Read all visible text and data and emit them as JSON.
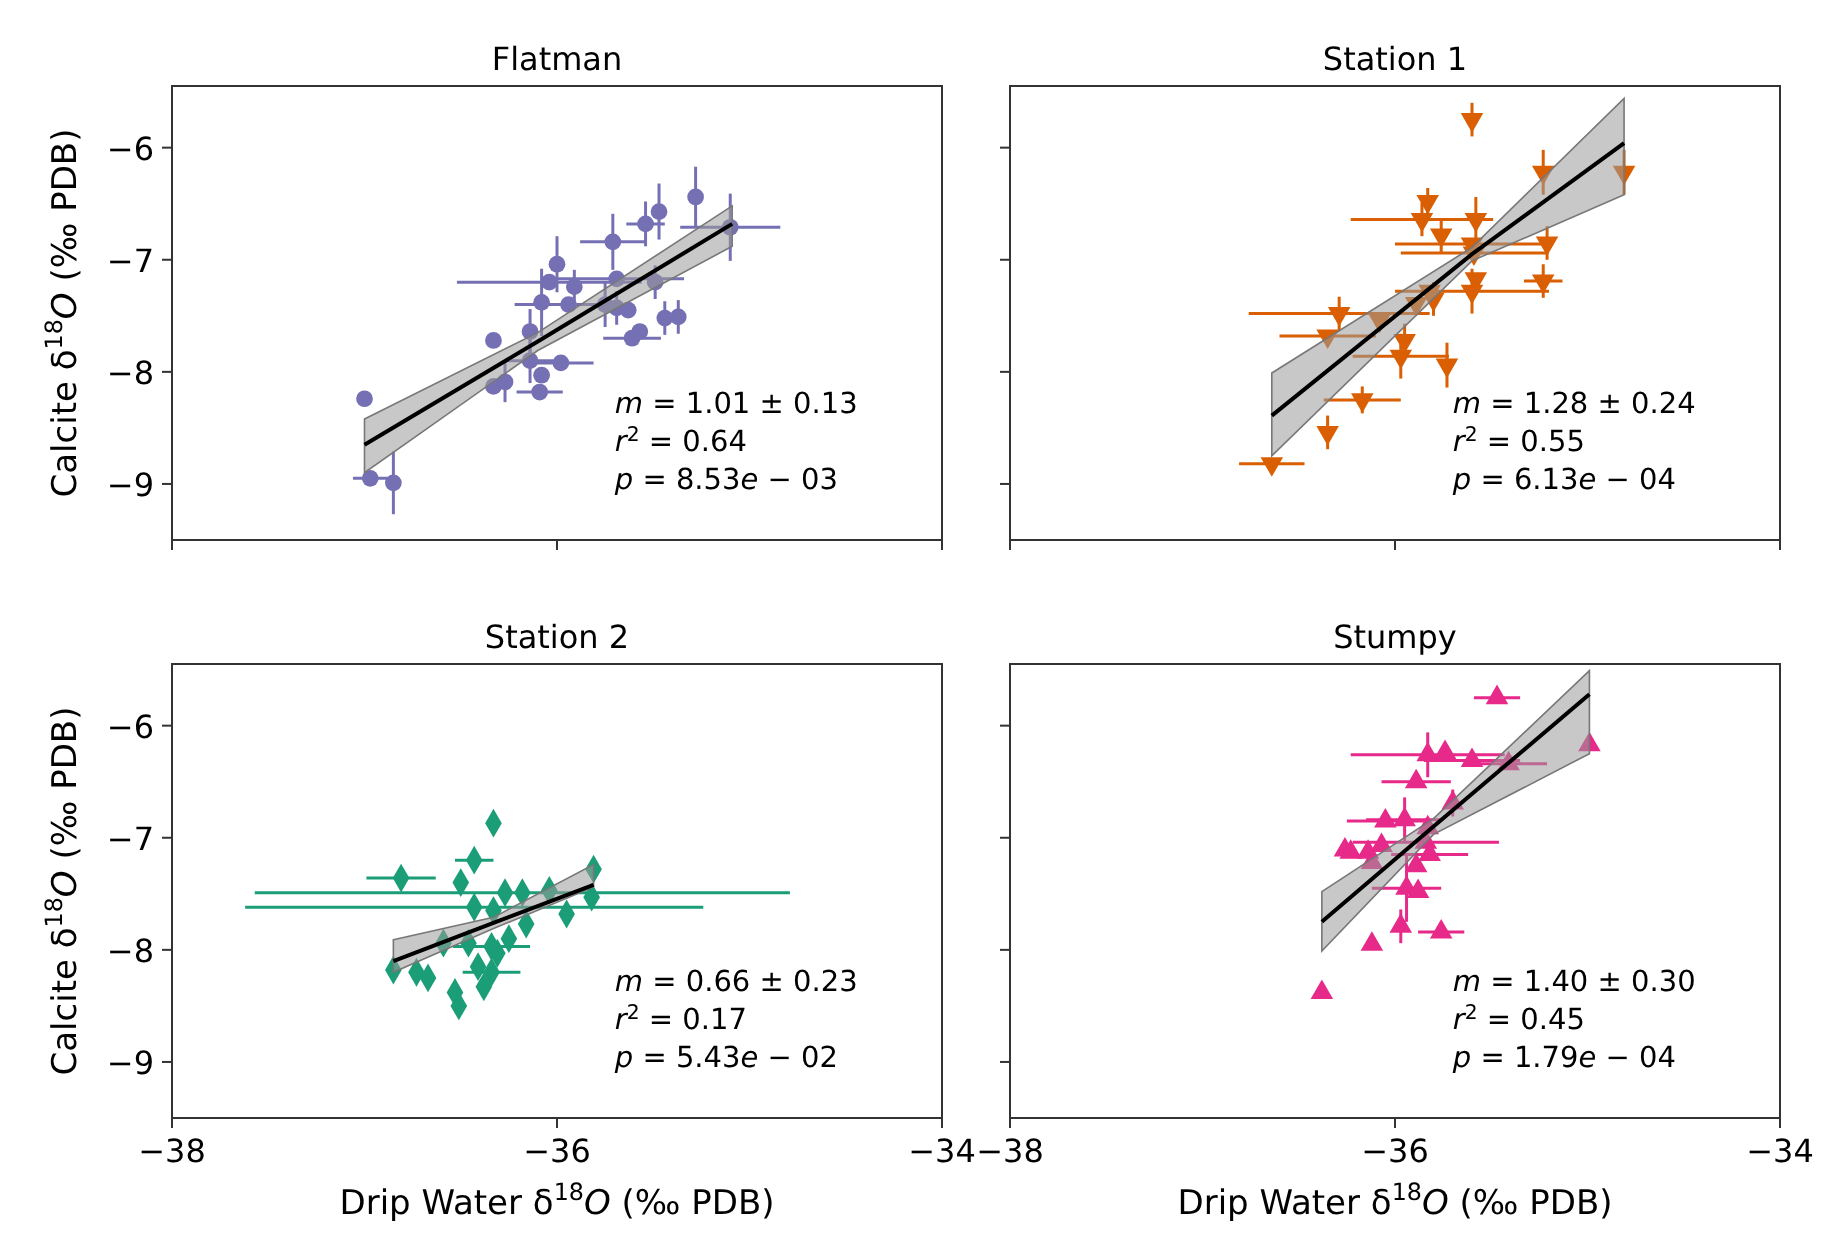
{
  "chart_data": [
    {
      "type": "scatter",
      "title": "Flatman",
      "ylabel": "Calcite δ$^{18}$O (‰ PDB)",
      "xlim": [
        -38,
        -34
      ],
      "xticks": [
        -38,
        -36,
        -34
      ],
      "ylim": [
        -9.5,
        -5.45
      ],
      "yticks": [
        -9,
        -8,
        -7,
        -6
      ],
      "tick_labels": "y",
      "annotations": [
        "m = 1.01 ± 0.13",
        "r$^{2}$ = 0.64",
        "p = 8.53e − 03"
      ],
      "series": [
        {
          "color": "#7570b3",
          "marker": "circle",
          "x": [
            -37.0,
            -36.97,
            -36.85,
            -36.33,
            -36.33,
            -36.27,
            -36.14,
            -36.14,
            -36.09,
            -36.08,
            -35.98,
            -36.08,
            -36.04,
            -36.0,
            -35.94,
            -35.91,
            -35.75,
            -35.71,
            -35.69,
            -35.69,
            -35.63,
            -35.61,
            -35.57,
            -35.54,
            -35.49,
            -35.47,
            -35.44,
            -35.37,
            -35.28,
            -35.1
          ],
          "values": [
            -8.24,
            -8.95,
            -8.99,
            -7.72,
            -8.13,
            -8.09,
            -7.64,
            -7.9,
            -8.18,
            -8.03,
            -7.92,
            -7.38,
            -7.2,
            -7.04,
            -7.4,
            -7.24,
            -7.4,
            -6.84,
            -7.17,
            -7.43,
            -7.45,
            -7.7,
            -7.64,
            -6.68,
            -7.2,
            -6.57,
            -7.52,
            -7.51,
            -6.44,
            -6.71
          ],
          "xerrors": [
            null,
            0.09,
            null,
            null,
            null,
            null,
            null,
            0.12,
            0.12,
            null,
            0.17,
            null,
            0.48,
            null,
            0.28,
            null,
            null,
            0.17,
            0.35,
            null,
            null,
            0.15,
            null,
            0.1,
            null,
            null,
            null,
            null,
            null,
            0.26
          ],
          "errors": [
            null,
            null,
            0.28,
            null,
            null,
            0.18,
            0.2,
            0.2,
            null,
            null,
            null,
            0.3,
            null,
            0.25,
            null,
            0.15,
            0.2,
            0.25,
            null,
            0.15,
            null,
            null,
            null,
            0.2,
            0.15,
            0.25,
            0.15,
            0.15,
            0.27,
            0.3
          ]
        },
        {
          "type": "line",
          "color": "#000000",
          "x": [
            -37.0,
            -36.1,
            -35.09
          ],
          "values": [
            -8.65,
            -7.73,
            -6.68
          ],
          "lower": [
            -8.9,
            -7.81,
            -6.88
          ],
          "upper": [
            -8.42,
            -7.65,
            -6.52
          ]
        }
      ]
    },
    {
      "type": "scatter",
      "title": "Station 1",
      "xlim": [
        -38,
        -34
      ],
      "xticks": [
        -38,
        -36,
        -34
      ],
      "ylim": [
        -9.5,
        -5.45
      ],
      "yticks": [
        -9,
        -8,
        -7,
        -6
      ],
      "tick_labels": false,
      "annotations": [
        "m = 1.28 ± 0.24",
        "r$^{2}$ = 0.55",
        "p = 6.13e − 04"
      ],
      "series": [
        {
          "color": "#d95f02",
          "marker": "triangle-down",
          "x": [
            -35.6,
            -35.23,
            -34.81,
            -35.83,
            -35.86,
            -35.58,
            -35.76,
            -35.6,
            -35.21,
            -35.59,
            -35.23,
            -35.58,
            -35.6,
            -35.82,
            -35.8,
            -35.89,
            -36.08,
            -36.29,
            -36.35,
            -35.95,
            -35.97,
            -35.73,
            -36.17,
            -36.35,
            -36.64
          ],
          "values": [
            -5.75,
            -6.22,
            -6.22,
            -6.48,
            -6.64,
            -6.64,
            -6.78,
            -6.86,
            -6.85,
            -6.94,
            -7.19,
            -7.17,
            -7.28,
            -7.28,
            -7.35,
            -7.39,
            -7.54,
            -7.48,
            -7.68,
            -7.72,
            -7.86,
            -7.94,
            -8.25,
            -8.54,
            -8.82
          ],
          "xerrors": [
            null,
            null,
            null,
            null,
            0.37,
            null,
            null,
            0.4,
            null,
            0.38,
            0.1,
            null,
            0.4,
            null,
            null,
            null,
            null,
            0.47,
            0.25,
            null,
            0.25,
            null,
            0.2,
            null,
            0.17
          ],
          "errors": [
            0.15,
            0.2,
            0.2,
            0.12,
            0.15,
            0.2,
            0.15,
            null,
            0.15,
            null,
            0.15,
            null,
            0.2,
            null,
            0.15,
            null,
            null,
            0.15,
            null,
            0.15,
            0.2,
            0.2,
            0.12,
            0.15,
            null
          ]
        },
        {
          "type": "line",
          "color": "#000000",
          "x": [
            -36.64,
            -35.6,
            -34.81
          ],
          "values": [
            -8.39,
            -6.95,
            -5.96
          ],
          "lower": [
            -8.75,
            -7.01,
            -6.42
          ],
          "upper": [
            -8.01,
            -6.89,
            -5.56
          ]
        }
      ]
    },
    {
      "type": "scatter",
      "title": "Station 2",
      "xlabel": "Drip Water δ$^{18}$O (‰ PDB)",
      "ylabel": "Calcite δ$^{18}$O (‰ PDB)",
      "xlim": [
        -38,
        -34
      ],
      "xticks": [
        -38,
        -36,
        -34
      ],
      "ylim": [
        -9.5,
        -5.45
      ],
      "yticks": [
        -9,
        -8,
        -7,
        -6
      ],
      "annotations": [
        "m = 0.66 ± 0.23",
        "r$^{2}$ = 0.17",
        "p = 5.43e − 02"
      ],
      "series": [
        {
          "color": "#1b9e77",
          "marker": "diamond",
          "x": [
            -36.33,
            -36.43,
            -36.81,
            -36.5,
            -35.81,
            -35.82,
            -36.18,
            -36.43,
            -36.27,
            -36.04,
            -35.95,
            -36.33,
            -36.16,
            -36.25,
            -36.34,
            -36.46,
            -36.59,
            -36.31,
            -36.85,
            -36.73,
            -36.67,
            -36.41,
            -36.34,
            -36.38,
            -36.53,
            -36.51
          ],
          "values": [
            -6.87,
            -7.2,
            -7.36,
            -7.4,
            -7.28,
            -7.53,
            -7.49,
            -7.62,
            -7.49,
            -7.47,
            -7.68,
            -7.65,
            -7.77,
            -7.9,
            -7.97,
            -7.94,
            -7.94,
            -8.03,
            -8.18,
            -8.2,
            -8.25,
            -8.15,
            -8.2,
            -8.33,
            -8.38,
            -8.5
          ],
          "xerrors": [
            null,
            0.1,
            0.18,
            null,
            null,
            null,
            1.39,
            1.19,
            null,
            null,
            null,
            null,
            null,
            null,
            0.2,
            null,
            null,
            null,
            null,
            null,
            null,
            null,
            0.15,
            null,
            null,
            null
          ]
        },
        {
          "type": "line",
          "color": "#000000",
          "x": [
            -36.85,
            -36.33,
            -35.81
          ],
          "values": [
            -8.1,
            -7.76,
            -7.42
          ],
          "lower": [
            -8.2,
            -7.81,
            -7.44
          ],
          "upper": [
            -7.91,
            -7.71,
            -7.24
          ]
        }
      ]
    },
    {
      "type": "scatter",
      "title": "Stumpy",
      "xlabel": "Drip Water δ$^{18}$O (‰ PDB)",
      "xlim": [
        -38,
        -34
      ],
      "xticks": [
        -38,
        -36,
        -34
      ],
      "ylim": [
        -9.5,
        -5.45
      ],
      "yticks": [
        -9,
        -8,
        -7,
        -6
      ],
      "tick_labels": "x",
      "annotations": [
        "m = 1.40 ± 0.30",
        "r$^{2}$ = 0.45",
        "p = 1.79e − 04"
      ],
      "series": [
        {
          "color": "#e7298a",
          "marker": "triangle",
          "x": [
            -35.47,
            -34.99,
            -35.83,
            -35.74,
            -35.6,
            -35.41,
            -35.89,
            -35.7,
            -35.95,
            -36.05,
            -35.83,
            -35.84,
            -36.26,
            -36.23,
            -36.14,
            -36.07,
            -36.12,
            -35.82,
            -35.89,
            -35.94,
            -35.88,
            -35.97,
            -35.76,
            -36.12,
            -36.38
          ],
          "values": [
            -5.75,
            -6.17,
            -6.26,
            -6.24,
            -6.31,
            -6.34,
            -6.5,
            -6.69,
            -6.84,
            -6.85,
            -6.91,
            -7.04,
            -7.11,
            -7.13,
            -7.13,
            -7.07,
            -7.22,
            -7.15,
            -7.25,
            -7.45,
            -7.48,
            -7.79,
            -7.84,
            -7.95,
            -8.38
          ],
          "xerrors": [
            0.12,
            null,
            0.4,
            null,
            0.25,
            0.2,
            0.18,
            null,
            0.2,
            0.2,
            null,
            0.38,
            null,
            null,
            null,
            null,
            null,
            0.2,
            null,
            0.18,
            null,
            null,
            0.12,
            null,
            null
          ],
          "errors": [
            null,
            null,
            0.2,
            null,
            null,
            null,
            null,
            0.12,
            0.2,
            null,
            null,
            null,
            null,
            null,
            null,
            null,
            null,
            null,
            null,
            0.3,
            null,
            0.15,
            null,
            null,
            null
          ]
        },
        {
          "type": "line",
          "color": "#000000",
          "x": [
            -36.38,
            -35.8,
            -34.99
          ],
          "values": [
            -7.75,
            -6.9,
            -5.72
          ],
          "lower": [
            -8.01,
            -6.97,
            -6.25
          ],
          "upper": [
            -7.48,
            -6.83,
            -5.51
          ]
        }
      ]
    }
  ]
}
